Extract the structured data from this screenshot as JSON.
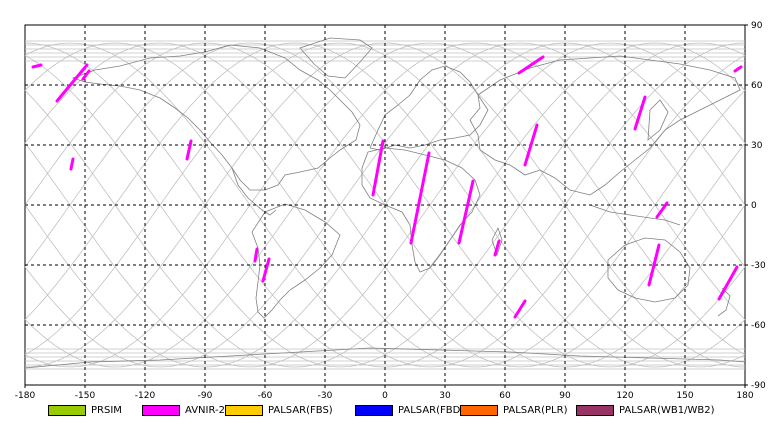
{
  "map": {
    "x_axis": {
      "min": -180,
      "max": 180,
      "ticks": [
        -180,
        -150,
        -120,
        -90,
        -60,
        -30,
        0,
        30,
        60,
        90,
        120,
        150,
        180
      ]
    },
    "y_axis": {
      "min": -90,
      "max": 90,
      "ticks": [
        90,
        60,
        30,
        0,
        -30,
        -60,
        -90
      ]
    },
    "grid": "dashed",
    "colors": {
      "coastline": "#808080",
      "orbit_track": "#c0c0c0",
      "grid": "#000000",
      "observation": "#ff00ff"
    },
    "observations": [
      {
        "sensor": "AVNIR-2",
        "from": [
          -164,
          52
        ],
        "to": [
          -149,
          70
        ]
      },
      {
        "sensor": "AVNIR-2",
        "from": [
          -151,
          63
        ],
        "to": [
          -148,
          67
        ]
      },
      {
        "sensor": "AVNIR-2",
        "from": [
          -176,
          69
        ],
        "to": [
          -172,
          70
        ]
      },
      {
        "sensor": "AVNIR-2",
        "from": [
          -157,
          18
        ],
        "to": [
          -156,
          23
        ]
      },
      {
        "sensor": "AVNIR-2",
        "from": [
          -99,
          23
        ],
        "to": [
          -97,
          32
        ]
      },
      {
        "sensor": "AVNIR-2",
        "from": [
          -61,
          -38
        ],
        "to": [
          -58,
          -27
        ]
      },
      {
        "sensor": "AVNIR-2",
        "from": [
          -65,
          -28
        ],
        "to": [
          -64,
          -22
        ]
      },
      {
        "sensor": "AVNIR-2",
        "from": [
          -6,
          5
        ],
        "to": [
          -1,
          32
        ]
      },
      {
        "sensor": "AVNIR-2",
        "from": [
          13,
          -19
        ],
        "to": [
          22,
          26
        ]
      },
      {
        "sensor": "AVNIR-2",
        "from": [
          37,
          -19
        ],
        "to": [
          44,
          12
        ]
      },
      {
        "sensor": "AVNIR-2",
        "from": [
          55,
          -25
        ],
        "to": [
          57,
          -18
        ]
      },
      {
        "sensor": "AVNIR-2",
        "from": [
          65,
          -56
        ],
        "to": [
          70,
          -48
        ]
      },
      {
        "sensor": "AVNIR-2",
        "from": [
          67,
          66
        ],
        "to": [
          79,
          74
        ]
      },
      {
        "sensor": "AVNIR-2",
        "from": [
          70,
          20
        ],
        "to": [
          76,
          40
        ]
      },
      {
        "sensor": "AVNIR-2",
        "from": [
          125,
          38
        ],
        "to": [
          130,
          54
        ]
      },
      {
        "sensor": "AVNIR-2",
        "from": [
          136,
          -6
        ],
        "to": [
          141,
          1
        ]
      },
      {
        "sensor": "AVNIR-2",
        "from": [
          132,
          -40
        ],
        "to": [
          137,
          -20
        ]
      },
      {
        "sensor": "AVNIR-2",
        "from": [
          167,
          -47
        ],
        "to": [
          176,
          -31
        ]
      },
      {
        "sensor": "AVNIR-2",
        "from": [
          175,
          67
        ],
        "to": [
          178,
          69
        ]
      }
    ]
  },
  "legend": [
    {
      "label": "PRSIM",
      "color": "#99cc00"
    },
    {
      "label": "AVNIR-2",
      "color": "#ff00ff"
    },
    {
      "label": "PALSAR(FBS)",
      "color": "#ffcc00"
    },
    {
      "label": "PALSAR(FBD)",
      "color": "#0000ff"
    },
    {
      "label": "PALSAR(PLR)",
      "color": "#ff6600"
    },
    {
      "label": "PALSAR(WB1/WB2)",
      "color": "#993366"
    }
  ]
}
